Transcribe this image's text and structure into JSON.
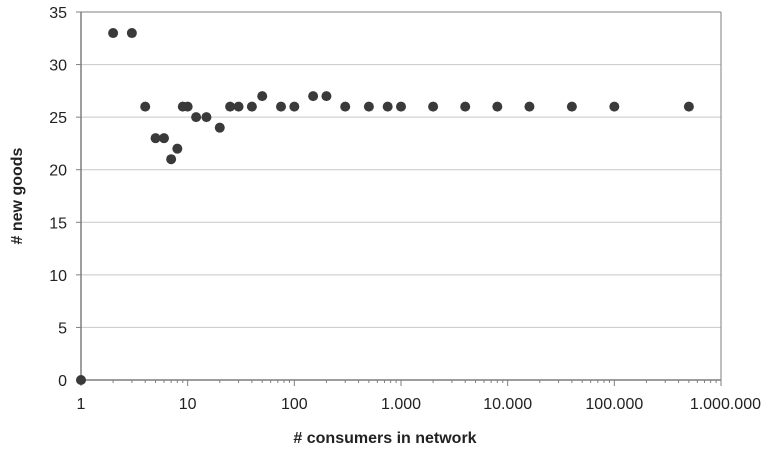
{
  "chart_data": {
    "type": "scatter",
    "title": "",
    "xlabel": "# consumers in network",
    "ylabel": "# new goods",
    "x_scale": "log",
    "xlim": [
      1,
      1000000
    ],
    "ylim": [
      0,
      35
    ],
    "grid": "horizontal",
    "legend": "none",
    "x_tick_values": [
      1,
      10,
      100,
      1000,
      10000,
      100000,
      1000000
    ],
    "x_tick_labels": [
      "1",
      "10",
      "100",
      "1.000",
      "10.000",
      "100.000",
      "1.000.000"
    ],
    "y_tick_values": [
      0,
      5,
      10,
      15,
      20,
      25,
      30,
      35
    ],
    "y_tick_labels": [
      "0",
      "5",
      "10",
      "15",
      "20",
      "25",
      "30",
      "35"
    ],
    "series": [
      {
        "points": [
          {
            "x": 1,
            "y": 0
          },
          {
            "x": 2,
            "y": 33
          },
          {
            "x": 3,
            "y": 33
          },
          {
            "x": 4,
            "y": 26
          },
          {
            "x": 5,
            "y": 23
          },
          {
            "x": 6,
            "y": 23
          },
          {
            "x": 7,
            "y": 21
          },
          {
            "x": 8,
            "y": 22
          },
          {
            "x": 9,
            "y": 26
          },
          {
            "x": 10,
            "y": 26
          },
          {
            "x": 12,
            "y": 25
          },
          {
            "x": 15,
            "y": 25
          },
          {
            "x": 20,
            "y": 24
          },
          {
            "x": 25,
            "y": 26
          },
          {
            "x": 30,
            "y": 26
          },
          {
            "x": 40,
            "y": 26
          },
          {
            "x": 50,
            "y": 27
          },
          {
            "x": 75,
            "y": 26
          },
          {
            "x": 100,
            "y": 26
          },
          {
            "x": 150,
            "y": 27
          },
          {
            "x": 200,
            "y": 27
          },
          {
            "x": 300,
            "y": 26
          },
          {
            "x": 500,
            "y": 26
          },
          {
            "x": 750,
            "y": 26
          },
          {
            "x": 1000,
            "y": 26
          },
          {
            "x": 2000,
            "y": 26
          },
          {
            "x": 4000,
            "y": 26
          },
          {
            "x": 8000,
            "y": 26
          },
          {
            "x": 16000,
            "y": 26
          },
          {
            "x": 40000,
            "y": 26
          },
          {
            "x": 100000,
            "y": 26
          },
          {
            "x": 500000,
            "y": 26
          }
        ]
      }
    ]
  },
  "colors": {
    "marker": "#3a3a3a",
    "gridline": "#c8c8c8",
    "axis": "#7f7f7f"
  }
}
